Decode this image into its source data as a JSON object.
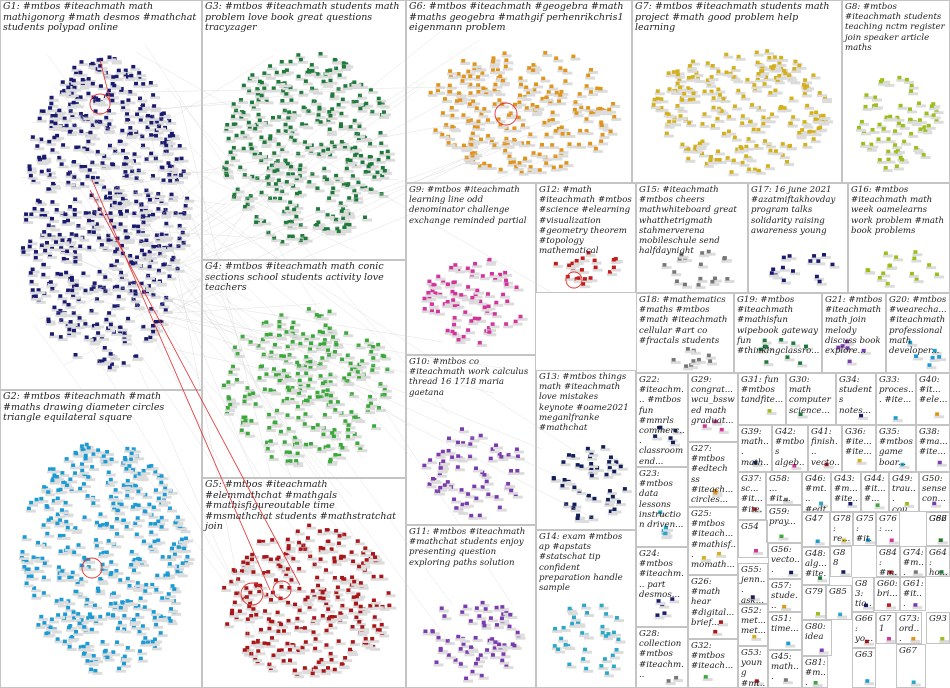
{
  "colors": {
    "palette": [
      "#1a1a6e",
      "#1e7a3a",
      "#e0941a",
      "#d4b01a",
      "#9bbf1a",
      "#d4339b",
      "#1a9bd4",
      "#3aa83a",
      "#a8161a",
      "#7a3ab0",
      "#111f5a",
      "#2aa8c8",
      "#777777",
      "#c41a1a"
    ],
    "edge": "#cfcfcf",
    "highlight": "#e83030",
    "border": "#c4c4c4"
  },
  "groups": [
    {
      "id": "G1",
      "label": "G1: #mtbos #iteachmath math mathigonorg #math desmos #mathchat students polypad online"
    },
    {
      "id": "G2",
      "label": "G2: #mtbos #iteachmath #math #maths drawing diameter circles triangle equilateral square"
    },
    {
      "id": "G3",
      "label": "G3: #mtbos #iteachmath students math problem love book great questions tracyzager"
    },
    {
      "id": "G4",
      "label": "G4: #mtbos #iteachmath math conic sections school students activity love teachers"
    },
    {
      "id": "G5",
      "label": "G5: #mtbos #iteachmath #elemmathchat #mathgals #mathisfigureoutable time #msmathchat students #mathstratchat join"
    },
    {
      "id": "G6",
      "label": "G6: #mtbos #iteachmath #geogebra #math #maths geogebra #mathgif perhenrikchris1 eigenmann problem"
    },
    {
      "id": "G7",
      "label": "G7: #mtbos #iteachmath students math project #math good problem help learning"
    },
    {
      "id": "G8",
      "label": "G8: #mtbos #iteachmath students teaching nctm register join speaker article maths"
    },
    {
      "id": "G9",
      "label": "G9: #mtbos #iteachmath learning line odd denominator challenge exchange reminded partial"
    },
    {
      "id": "G10",
      "label": "G10: #mtbos co #iteachmath work calculus thread 16 1718 maria gaetana"
    },
    {
      "id": "G11",
      "label": "G11: #mtbos #iteachmath #mathchat students enjoy presenting question exploring paths solution"
    },
    {
      "id": "G12",
      "label": "G12: #math #iteachmath #mtbos #science #elearning #visualization #geometry theorem #topology mathematical"
    },
    {
      "id": "G13",
      "label": "G13: #mtbos things math #iteachmath love mistakes keynote #oame2021 meganlfranke #mathchat"
    },
    {
      "id": "G14",
      "label": "G14: exam #mtbos ap #apstats #statschat tip confident preparation handle sample"
    },
    {
      "id": "G15",
      "label": "G15: #iteachmath #mtbos cheers mathwhiteboard great whatthetrigmath stahmerverena mobileschule send halfdaynight"
    },
    {
      "id": "G16",
      "label": "G16: #mtbos #iteachmath math week oamelearns work problem #math book problems"
    },
    {
      "id": "G17",
      "label": "G17: 16 june 2021 #azatmiftakhovday program talks solidarity raising awareness young"
    },
    {
      "id": "G18",
      "label": "G18: #mathematics #maths #mtbos #math #iteachmath cellular #art co #fractals students"
    },
    {
      "id": "G19",
      "label": "G19: #mtbos #iteachmath #mathisfun wipebook gateway fun #thinkingclassro..."
    },
    {
      "id": "G20",
      "label": "G20: #mtbos #wearecha... #iteachmath professional math developer..."
    },
    {
      "id": "G21",
      "label": "G21: #mtbos #iteachmath math join melody discuss book explore..."
    },
    {
      "id": "G22",
      "label": "G22: #iteachm... #mtbos fun #mmrls commerc... classroom end..."
    },
    {
      "id": "G23",
      "label": "G23: #mtbos data lessons instruction driven..."
    },
    {
      "id": "G24",
      "label": "G24: #mtbos #iteachm... part desmos..."
    },
    {
      "id": "G25",
      "label": "G25: #mtbos #iteach... #mathisf... momath..."
    },
    {
      "id": "G26",
      "label": "G26: #math hear #digital... brief..."
    },
    {
      "id": "G27",
      "label": "G27: #mtbos #edtech ss #iteach... circles..."
    },
    {
      "id": "G28",
      "label": "G28: collection #mtbos #iteachm..."
    },
    {
      "id": "G29",
      "label": "G29: congrat... wcu_bssw ed math graduat..."
    },
    {
      "id": "G30",
      "label": "G30: math computer science..."
    },
    {
      "id": "G31",
      "label": "G31: fun #mtbos tandfite..."
    },
    {
      "id": "G32",
      "label": "G32: #mtbos #iteach..."
    },
    {
      "id": "G33",
      "label": "G33: proces... #ite..."
    },
    {
      "id": "G34",
      "label": "G34: students notes..."
    },
    {
      "id": "G35",
      "label": "G35: #mtbos game boar..."
    },
    {
      "id": "G36",
      "label": "G36: #ite... #ite..."
    },
    {
      "id": "G37",
      "label": "G37: sc... #it... #ite..."
    },
    {
      "id": "G38",
      "label": "G38: #ma... #ite..."
    },
    {
      "id": "G39",
      "label": "G39: math... math..."
    },
    {
      "id": "G40",
      "label": "G40: #it... #ele..."
    },
    {
      "id": "G41",
      "label": "G41: finish... vecto..."
    },
    {
      "id": "G42",
      "label": "G42: #mtbos algeb..."
    },
    {
      "id": "G43",
      "label": "G43: #m... #ite..."
    },
    {
      "id": "G44",
      "label": "G44: #it... #..."
    },
    {
      "id": "G45",
      "label": "G45: math..."
    },
    {
      "id": "G46",
      "label": "G46: #mt... #edt..."
    },
    {
      "id": "G47",
      "label": "G47"
    },
    {
      "id": "G48",
      "label": "G48: alg... #ite..."
    },
    {
      "id": "G49",
      "label": "G49: trau... cou..."
    },
    {
      "id": "G50",
      "label": "G50: sense con..."
    },
    {
      "id": "G51",
      "label": "G51: time..."
    },
    {
      "id": "G52",
      "label": "G52: met... met..."
    },
    {
      "id": "G53",
      "label": "G53: young #mt..."
    },
    {
      "id": "G54",
      "label": "G54"
    },
    {
      "id": "G55",
      "label": "G55: jenn... ask..."
    },
    {
      "id": "G56",
      "label": "G56: vecto..."
    },
    {
      "id": "G57",
      "label": "G57: stude..."
    },
    {
      "id": "G58",
      "label": "G58: ... #it..."
    },
    {
      "id": "G59",
      "label": "G59: pray..."
    },
    {
      "id": "G60",
      "label": "G60: bri..."
    },
    {
      "id": "G61",
      "label": "G61: #it..."
    },
    {
      "id": "G62",
      "label": "G62"
    },
    {
      "id": "G63",
      "label": "G63"
    },
    {
      "id": "G64",
      "label": "G64: ho..."
    },
    {
      "id": "G66",
      "label": "G66: yo..."
    },
    {
      "id": "G67",
      "label": "G67"
    },
    {
      "id": "G71",
      "label": "G71"
    },
    {
      "id": "G73",
      "label": "G73: ord..."
    },
    {
      "id": "G74",
      "label": "G74: #m..."
    },
    {
      "id": "G75",
      "label": "G75: #it..."
    },
    {
      "id": "G76",
      "label": "G76: ..."
    },
    {
      "id": "G78",
      "label": "G78: re..."
    },
    {
      "id": "G79",
      "label": "G79"
    },
    {
      "id": "G80",
      "label": "G80: idea"
    },
    {
      "id": "G81",
      "label": "G81: #m..."
    },
    {
      "id": "G83",
      "label": "G83: tio..."
    },
    {
      "id": "G84",
      "label": "G84: #m..."
    },
    {
      "id": "G85",
      "label": "G85"
    },
    {
      "id": "G86",
      "label": "G86"
    },
    {
      "id": "G88",
      "label": "G88"
    },
    {
      "id": "G93",
      "label": "G93"
    }
  ]
}
